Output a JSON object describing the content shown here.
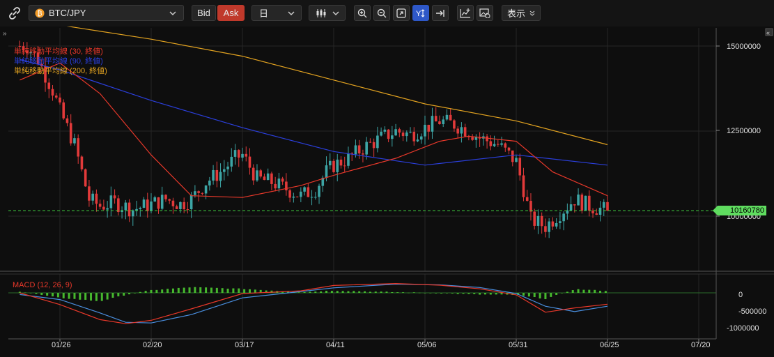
{
  "toolbar": {
    "symbol": "BTC/JPY",
    "bid_label": "Bid",
    "ask_label": "Ask",
    "interval": "日",
    "display_label": "表示"
  },
  "colors": {
    "background": "#0e0e0e",
    "up": "#3da5a5",
    "down": "#e23a3a",
    "ma30": "#e8382a",
    "ma90": "#2b3fdc",
    "ma200": "#e3a320",
    "macd_line": "#e8382a",
    "signal_line": "#4a8fe0",
    "histogram": "#46b82e",
    "current_price_line": "#3ecf3e",
    "bid_bg": "#262626",
    "ask_bg": "#c0392b",
    "active_tool": "#2e58c8"
  },
  "indicators": {
    "ma30": "単純移動平均線 (30, 終値)",
    "ma90": "単純移動平均線 (90, 終値)",
    "ma200": "単純移動平均線 (200, 終値)",
    "macd": "MACD (12, 26, 9)"
  },
  "price_axis": {
    "ticks": [
      "15000000",
      "12500000",
      "10000000"
    ],
    "current_price": "10160780"
  },
  "macd_axis": {
    "ticks": [
      "0",
      "-500000",
      "-1000000"
    ]
  },
  "time_axis": {
    "ticks": [
      "01/26",
      "02/20",
      "03/17",
      "04/11",
      "05/06",
      "05/31",
      "06/25",
      "07/20"
    ]
  },
  "chart_data": {
    "type": "candlestick",
    "x_start": "01/15",
    "x_end": "06/25",
    "ylim": [
      8000000,
      15800000
    ],
    "close_points": [
      [
        "01/17",
        15000000
      ],
      [
        "01/20",
        14600000
      ],
      [
        "01/24",
        13700000
      ],
      [
        "01/26",
        13100000
      ],
      [
        "01/30",
        12100000
      ],
      [
        "02/03",
        10500000
      ],
      [
        "02/06",
        10300000
      ],
      [
        "02/10",
        10400000
      ],
      [
        "02/15",
        10200000
      ],
      [
        "02/20",
        10350000
      ],
      [
        "02/24",
        10500000
      ],
      [
        "02/28",
        10350000
      ],
      [
        "03/03",
        10500000
      ],
      [
        "03/07",
        11000000
      ],
      [
        "03/11",
        11300000
      ],
      [
        "03/15",
        11700000
      ],
      [
        "03/17",
        11800000
      ],
      [
        "03/21",
        11100000
      ],
      [
        "03/25",
        11000000
      ],
      [
        "03/29",
        10800000
      ],
      [
        "04/02",
        10600000
      ],
      [
        "04/06",
        10800000
      ],
      [
        "04/09",
        11300000
      ],
      [
        "04/11",
        11500000
      ],
      [
        "04/15",
        11700000
      ],
      [
        "04/19",
        12000000
      ],
      [
        "04/24",
        12300000
      ],
      [
        "04/28",
        12500000
      ],
      [
        "05/02",
        12400000
      ],
      [
        "05/06",
        12600000
      ],
      [
        "05/10",
        12800000
      ],
      [
        "05/14",
        12700000
      ],
      [
        "05/18",
        12500000
      ],
      [
        "05/21",
        12300000
      ],
      [
        "05/26",
        12100000
      ],
      [
        "05/31",
        11600000
      ],
      [
        "06/02",
        10800000
      ],
      [
        "06/04",
        9900000
      ],
      [
        "06/08",
        9700000
      ],
      [
        "06/12",
        10100000
      ],
      [
        "06/16",
        10500000
      ],
      [
        "06/20",
        10300000
      ],
      [
        "06/25",
        10160780
      ]
    ],
    "ma30": [
      [
        "01/15",
        14000000
      ],
      [
        "01/26",
        14500000
      ],
      [
        "02/06",
        13600000
      ],
      [
        "02/20",
        11800000
      ],
      [
        "03/03",
        10600000
      ],
      [
        "03/17",
        10550000
      ],
      [
        "04/02",
        10900000
      ],
      [
        "04/11",
        11200000
      ],
      [
        "04/28",
        11700000
      ],
      [
        "05/10",
        12200000
      ],
      [
        "05/18",
        12350000
      ],
      [
        "05/31",
        12200000
      ],
      [
        "06/10",
        11300000
      ],
      [
        "06/25",
        10600000
      ]
    ],
    "ma90": [
      [
        "01/15",
        14600000
      ],
      [
        "01/26",
        14300000
      ],
      [
        "02/20",
        13400000
      ],
      [
        "03/17",
        12600000
      ],
      [
        "04/11",
        11900000
      ],
      [
        "05/06",
        11500000
      ],
      [
        "05/31",
        11800000
      ],
      [
        "06/25",
        11500000
      ]
    ],
    "ma200": [
      [
        "01/15",
        15800000
      ],
      [
        "02/20",
        15200000
      ],
      [
        "03/17",
        14700000
      ],
      [
        "04/11",
        14000000
      ],
      [
        "05/06",
        13300000
      ],
      [
        "05/31",
        12800000
      ],
      [
        "06/25",
        12100000
      ]
    ],
    "macd": {
      "ylim": [
        -1150000,
        550000
      ],
      "macd": [
        [
          "01/15",
          0
        ],
        [
          "01/26",
          -350000
        ],
        [
          "02/06",
          -800000
        ],
        [
          "02/13",
          -920000
        ],
        [
          "02/20",
          -820000
        ],
        [
          "03/03",
          -480000
        ],
        [
          "03/17",
          -20000
        ],
        [
          "04/02",
          60000
        ],
        [
          "04/11",
          220000
        ],
        [
          "04/28",
          280000
        ],
        [
          "05/10",
          230000
        ],
        [
          "05/21",
          120000
        ],
        [
          "05/31",
          -60000
        ],
        [
          "06/08",
          -580000
        ],
        [
          "06/16",
          -450000
        ],
        [
          "06/25",
          -340000
        ]
      ],
      "signal": [
        [
          "01/15",
          -50000
        ],
        [
          "01/26",
          -200000
        ],
        [
          "02/06",
          -600000
        ],
        [
          "02/13",
          -880000
        ],
        [
          "02/20",
          -900000
        ],
        [
          "03/03",
          -650000
        ],
        [
          "03/17",
          -150000
        ],
        [
          "04/02",
          40000
        ],
        [
          "04/11",
          150000
        ],
        [
          "04/28",
          260000
        ],
        [
          "05/10",
          240000
        ],
        [
          "05/21",
          160000
        ],
        [
          "05/31",
          -20000
        ],
        [
          "06/08",
          -400000
        ],
        [
          "06/16",
          -560000
        ],
        [
          "06/25",
          -400000
        ]
      ],
      "histogram": [
        [
          "01/15",
          40000
        ],
        [
          "01/26",
          -150000
        ],
        [
          "02/06",
          -250000
        ],
        [
          "02/13",
          -60000
        ],
        [
          "02/20",
          80000
        ],
        [
          "03/03",
          170000
        ],
        [
          "03/17",
          120000
        ],
        [
          "04/02",
          20000
        ],
        [
          "04/11",
          70000
        ],
        [
          "04/28",
          20000
        ],
        [
          "05/10",
          -10000
        ],
        [
          "05/21",
          -50000
        ],
        [
          "05/31",
          -60000
        ],
        [
          "06/08",
          -180000
        ],
        [
          "06/16",
          110000
        ],
        [
          "06/25",
          60000
        ]
      ]
    }
  }
}
